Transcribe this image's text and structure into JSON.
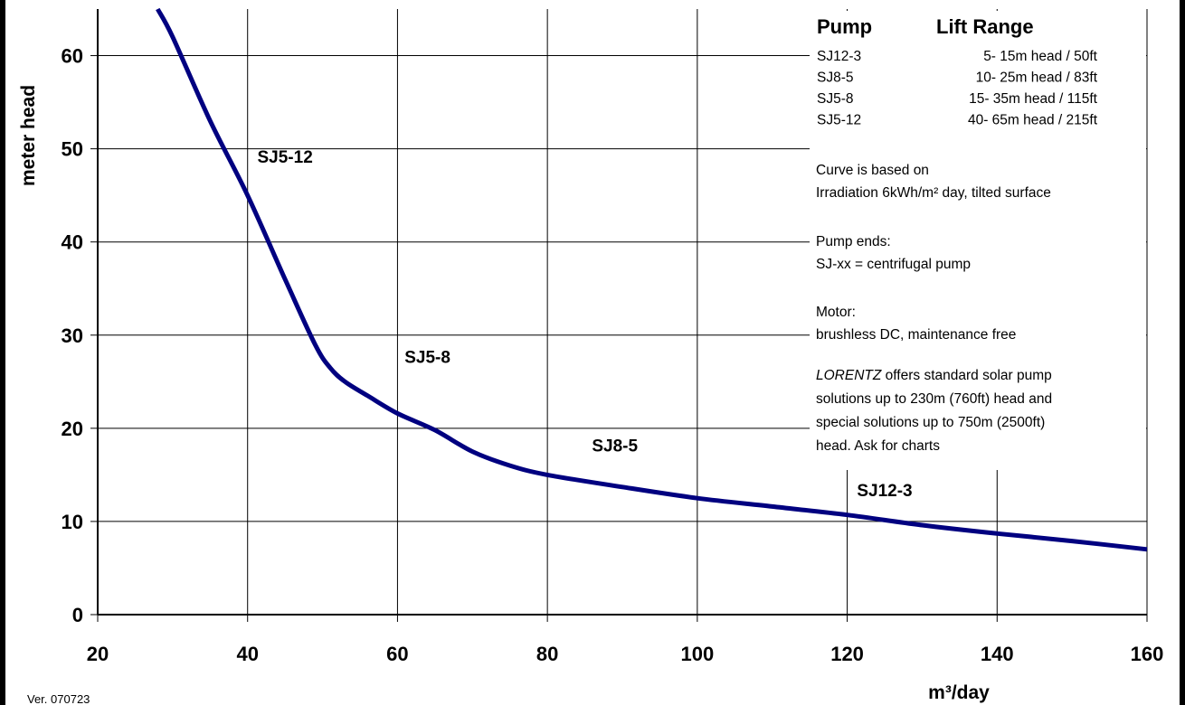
{
  "chart_data": {
    "type": "line",
    "xlabel": "m³/day",
    "ylabel": "meter head",
    "xlim": [
      20,
      160
    ],
    "ylim": [
      0,
      65
    ],
    "x_ticks": [
      "20",
      "40",
      "60",
      "80",
      "100",
      "120",
      "140",
      "160"
    ],
    "y_ticks": [
      "0",
      "10",
      "20",
      "30",
      "40",
      "50",
      "60"
    ],
    "grid": true,
    "series": [
      {
        "color": "#000080",
        "x": [
          28,
          30,
          35,
          40,
          45,
          49,
          51,
          53,
          56,
          60,
          65,
          70,
          75,
          80,
          90,
          100,
          110,
          120,
          130,
          140,
          150,
          160
        ],
        "y": [
          65,
          62,
          53,
          45,
          36,
          29,
          26.5,
          25,
          23.5,
          21.6,
          19.8,
          17.5,
          16,
          15,
          13.7,
          12.5,
          11.6,
          10.7,
          9.6,
          8.7,
          7.9,
          7
        ]
      }
    ],
    "region_labels": [
      {
        "text": "SJ5-12",
        "x": 45,
        "y": 48.5
      },
      {
        "text": "SJ5-8",
        "x": 64,
        "y": 27
      },
      {
        "text": "SJ8-5",
        "x": 89,
        "y": 17.5
      },
      {
        "text": "SJ12-3",
        "x": 125,
        "y": 12.7
      }
    ],
    "legend": {
      "title_left": "Pump",
      "title_right": "Lift Range",
      "rows": [
        {
          "pump": "SJ12-3",
          "range": "5- 15m head / 50ft"
        },
        {
          "pump": "SJ8-5",
          "range": "10- 25m head / 83ft"
        },
        {
          "pump": "SJ5-8",
          "range": "15- 35m head / 115ft"
        },
        {
          "pump": "SJ5-12",
          "range": "40- 65m head / 215ft"
        }
      ],
      "notes": [
        {
          "lines": [
            "Curve is based on",
            "Irradiation 6kWh/m² day, tilted surface"
          ]
        },
        {
          "lines": [
            "Pump ends:",
            "SJ-xx = centrifugal pump"
          ]
        },
        {
          "lines": [
            "Motor:",
            "brushless DC, maintenance free"
          ]
        }
      ],
      "footer_italic": "LORENTZ",
      "footer_lines": [
        " offers standard solar pump",
        "solutions up to 230m (760ft) head and",
        "special solutions up to 750m (2500ft)",
        "head. Ask for charts"
      ]
    }
  },
  "version_label": "Ver. 070723"
}
